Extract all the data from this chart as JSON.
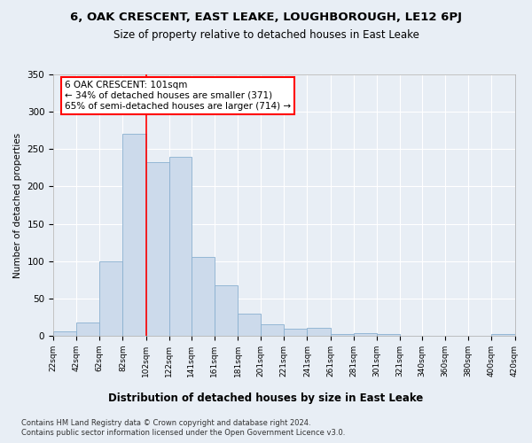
{
  "title1": "6, OAK CRESCENT, EAST LEAKE, LOUGHBOROUGH, LE12 6PJ",
  "title2": "Size of property relative to detached houses in East Leake",
  "xlabel": "Distribution of detached houses by size in East Leake",
  "ylabel": "Number of detached properties",
  "footer1": "Contains HM Land Registry data © Crown copyright and database right 2024.",
  "footer2": "Contains public sector information licensed under the Open Government Licence v3.0.",
  "bin_labels": [
    "22sqm",
    "42sqm",
    "62sqm",
    "82sqm",
    "102sqm",
    "122sqm",
    "141sqm",
    "161sqm",
    "181sqm",
    "201sqm",
    "221sqm",
    "241sqm",
    "261sqm",
    "281sqm",
    "301sqm",
    "321sqm",
    "340sqm",
    "360sqm",
    "380sqm",
    "400sqm",
    "420sqm"
  ],
  "bar_values": [
    6,
    18,
    100,
    270,
    232,
    240,
    106,
    68,
    30,
    15,
    9,
    10,
    2,
    3,
    2,
    0,
    0,
    0,
    0,
    2
  ],
  "bar_color": "#ccdaeb",
  "bar_edge_color": "#8ab0d0",
  "property_line_x": 102,
  "annotation_text": "6 OAK CRESCENT: 101sqm\n← 34% of detached houses are smaller (371)\n65% of semi-detached houses are larger (714) →",
  "annotation_box_color": "white",
  "annotation_box_edge_color": "red",
  "ylim": [
    0,
    350
  ],
  "background_color": "#e8eef5",
  "grid_color": "white"
}
